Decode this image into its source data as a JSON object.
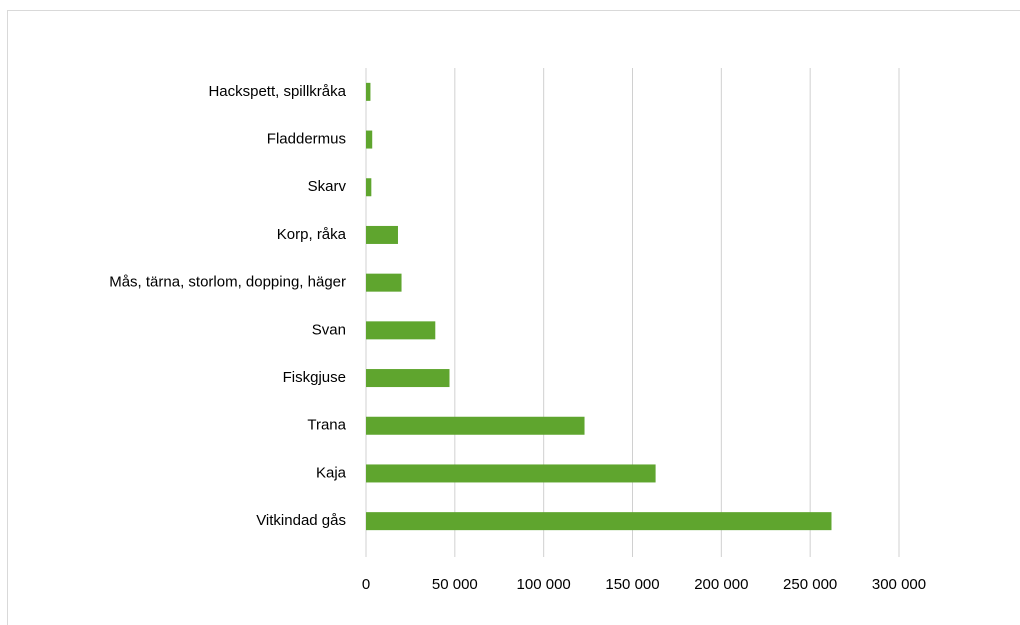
{
  "chart_data": {
    "type": "hbar",
    "categories": [
      "Hackspett, spillkråka",
      "Fladdermus",
      "Skarv",
      "Korp, råka",
      "Mås, tärna, storlom, dopping, häger",
      "Svan",
      "Fiskgjuse",
      "Trana",
      "Kaja",
      "Vitkindad gås"
    ],
    "values": [
      2500,
      3500,
      3000,
      18000,
      20000,
      39000,
      47000,
      123000,
      163000,
      262000
    ],
    "color": "#5fa52e",
    "xlim": [
      0,
      300000
    ],
    "xticks": [
      0,
      {
        "value": 50000,
        "label": "50 000"
      },
      {
        "value": 100000,
        "label": "100 000"
      },
      {
        "value": 150000,
        "label": "150 000"
      },
      {
        "value": 200000,
        "label": "200 000"
      },
      {
        "value": 250000,
        "label": "250 000"
      },
      {
        "value": 300000,
        "label": "300 000"
      }
    ],
    "grid": true
  }
}
